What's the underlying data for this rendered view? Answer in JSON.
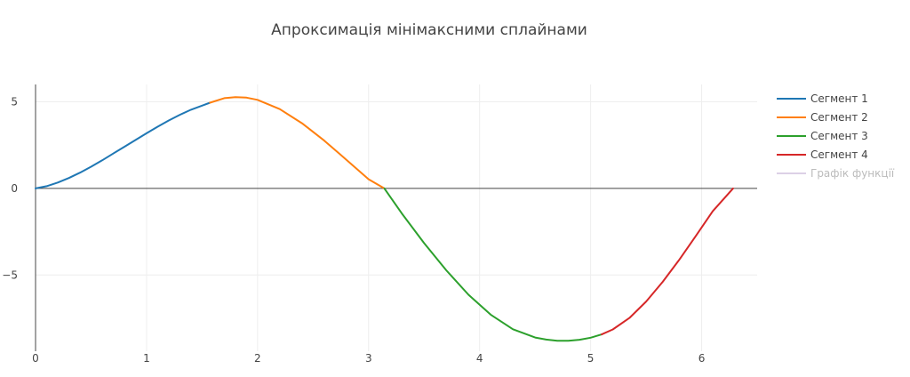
{
  "chart_data": {
    "type": "line",
    "title": "Апроксимація мінімаксними сплайнами",
    "xlabel": "",
    "ylabel": "",
    "xlim": [
      0,
      6.5
    ],
    "ylim": [
      -9.4,
      6
    ],
    "x_ticks": [
      0,
      1,
      2,
      3,
      4,
      5,
      6
    ],
    "y_ticks": [
      5,
      0,
      -5
    ],
    "y_tick_labels": [
      "5",
      "0",
      "−5"
    ],
    "grid": true,
    "legend_position": "top-right",
    "series": [
      {
        "name": "Сегмент 1",
        "color": "#1f77b4",
        "visible": true,
        "x": [
          0,
          0.1,
          0.2,
          0.3,
          0.4,
          0.5,
          0.6,
          0.7,
          0.8,
          0.9,
          1.0,
          1.1,
          1.2,
          1.3,
          1.4,
          1.5,
          1.571
        ],
        "y": [
          0,
          0.13,
          0.34,
          0.6,
          0.91,
          1.25,
          1.62,
          2.01,
          2.4,
          2.79,
          3.18,
          3.56,
          3.92,
          4.25,
          4.54,
          4.78,
          4.95
        ]
      },
      {
        "name": "Сегмент 2",
        "color": "#ff7f0e",
        "visible": true,
        "x": [
          1.571,
          1.7,
          1.8,
          1.9,
          2.0,
          2.2,
          2.4,
          2.6,
          2.8,
          3.0,
          3.1416
        ],
        "y": [
          4.95,
          5.21,
          5.27,
          5.24,
          5.11,
          4.58,
          3.76,
          2.76,
          1.65,
          0.53,
          0.0
        ]
      },
      {
        "name": "Сегмент 3",
        "color": "#2ca02c",
        "visible": true,
        "x": [
          3.1416,
          3.3,
          3.5,
          3.7,
          3.9,
          4.1,
          4.3,
          4.5,
          4.6,
          4.7,
          4.8,
          4.9,
          5.0,
          5.1
        ],
        "y": [
          0.0,
          -1.45,
          -3.16,
          -4.73,
          -6.14,
          -7.29,
          -8.13,
          -8.61,
          -8.73,
          -8.8,
          -8.8,
          -8.74,
          -8.62,
          -8.43
        ]
      },
      {
        "name": "Сегмент 4",
        "color": "#d62728",
        "visible": true,
        "x": [
          5.1,
          5.2,
          5.35,
          5.5,
          5.65,
          5.8,
          5.95,
          6.1,
          6.2833
        ],
        "y": [
          -8.43,
          -8.14,
          -7.48,
          -6.53,
          -5.39,
          -4.1,
          -2.72,
          -1.32,
          0.0
        ]
      },
      {
        "name": "Графік функції",
        "color": "#c5b0d5",
        "visible": false,
        "x": [],
        "y": []
      }
    ]
  }
}
